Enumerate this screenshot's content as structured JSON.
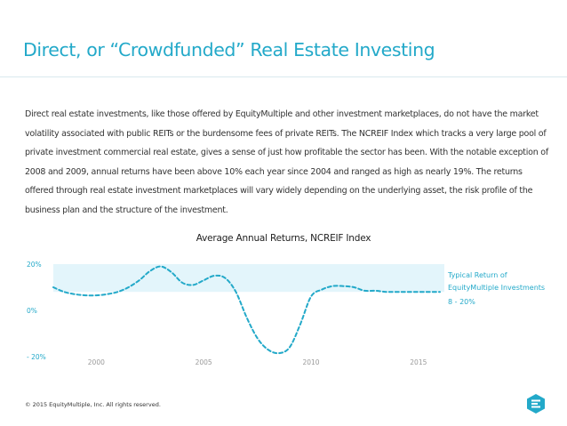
{
  "slide": {
    "title": "Direct, or “Crowdfunded” Real Estate Investing",
    "body": "Direct real estate investments, like those offered by EquityMultiple and other investment marketplaces, do not have the market volatility associated with public REITs or the burdensome fees of private REITs.  The NCREIF Index which tracks a very large pool of private investment commercial real estate, gives a sense of just how profitable the sector has been. With the notable exception of 2008 and 2009, annual returns have been above 10% each year since 2004 and ranged as high as nearly 19%.  The returns offered through real estate investment marketplaces will vary widely depending on the underlying asset, the risk profile of the business plan and the structure of the investment.",
    "footer": "© 2015 EquityMultiple, Inc. All rights reserved.",
    "logo_icon": "equitymultiple-logo-icon"
  },
  "annotation": {
    "line1": "Typical Return of",
    "line2": "EquityMultiple Investments",
    "range": "8 - 20%"
  },
  "chart_data": {
    "type": "line",
    "title": "Average Annual Returns, NCREIF Index",
    "xlabel": "",
    "ylabel": "",
    "x_ticks": [
      "2000",
      "2005",
      "2010",
      "2015"
    ],
    "y_ticks": [
      "20%",
      "0%",
      "- 20%"
    ],
    "ylim": [
      -20,
      20
    ],
    "band": {
      "low": 8,
      "high": 20,
      "color": "#e3f5fb"
    },
    "grid": false,
    "line_style": "dashed",
    "color": "#23a9c9",
    "series": [
      {
        "x": [
          1998,
          1998.5,
          1999,
          1999.5,
          2000,
          2000.5,
          2001,
          2001.5,
          2002,
          2002.5,
          2003,
          2003.5,
          2004,
          2004.5,
          2005,
          2005.5,
          2006,
          2006.5,
          2007,
          2007.5,
          2008,
          2008.5,
          2009,
          2009.5,
          2010,
          2010.5,
          2011,
          2011.5,
          2012,
          2012.5,
          2013,
          2013.5,
          2014,
          2014.5,
          2015,
          2015.5,
          2016
        ],
        "y": [
          10,
          8,
          7,
          6.5,
          6.5,
          7,
          8,
          10,
          13,
          17,
          19,
          16.5,
          12,
          11,
          13,
          15,
          14,
          8,
          -3,
          -12,
          -17,
          -18.5,
          -16,
          -6,
          6,
          9,
          10.5,
          10.5,
          10,
          8.5,
          8.5,
          8,
          8,
          8,
          8,
          8,
          8
        ]
      }
    ]
  }
}
